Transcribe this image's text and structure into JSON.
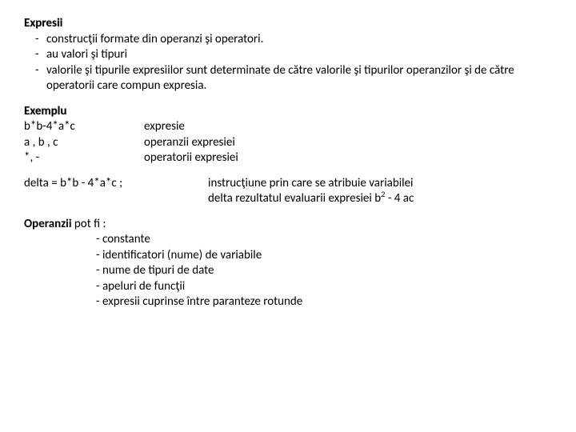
{
  "title": "Expresii",
  "bullets": [
    "construcţii formate din operanzi şi operatori.",
    "au valori şi tipuri",
    "valorile şi tipurile expresiilor sunt determinate de către valorile şi tipurilor operanzilor şi de către operatorii care compun expresia."
  ],
  "example_title": "Exemplu",
  "example": [
    {
      "left": "b*b-4*a*c",
      "right": "expresie"
    },
    {
      "left": "a , b , c",
      "right": "operanzii expresiei"
    },
    {
      "left": "*, -",
      "right": "operatorii expresiei"
    }
  ],
  "delta": {
    "code": "delta = b*b - 4*a*c ;",
    "desc1": "instrucţiune prin care se atribuie variabilei",
    "desc2_prefix": "delta rezultatul evaluarii expresiei b",
    "desc2_sup": "2",
    "desc2_suffix": " - 4 ac"
  },
  "operands_title": "Operanzii",
  "operands_rest": " pot fi :",
  "operands": [
    "- constante",
    "- identificatori (nume) de variabile",
    "- nume de tipuri de date",
    "- apeluri de funcţii",
    "- expresii cuprinse între paranteze rotunde"
  ]
}
